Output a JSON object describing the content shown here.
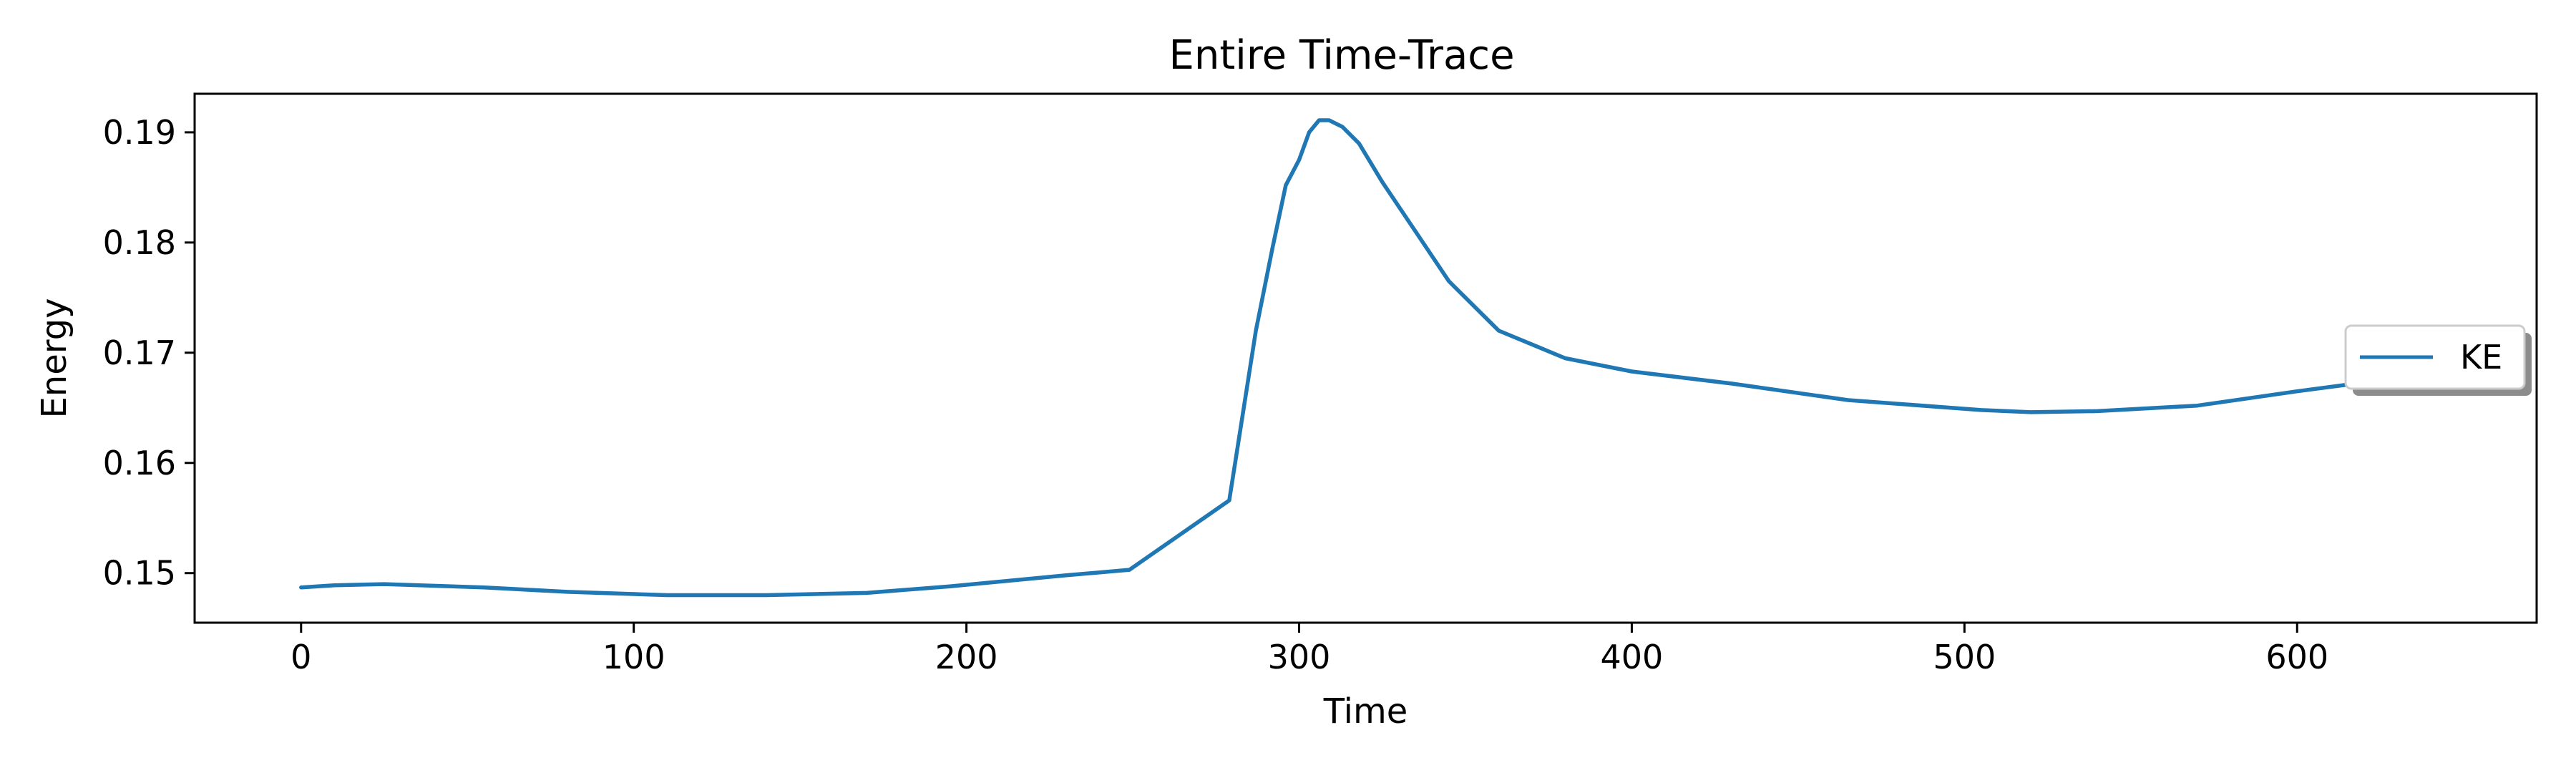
{
  "chart_data": {
    "type": "line",
    "title": "Entire Time-Trace",
    "xlabel": "Time",
    "ylabel": "Energy",
    "xlim": [
      -32,
      672
    ],
    "ylim": [
      0.1455,
      0.1935
    ],
    "xticks": [
      0,
      100,
      200,
      300,
      400,
      500,
      600
    ],
    "xtick_labels": [
      "0",
      "100",
      "200",
      "300",
      "400",
      "500",
      "600"
    ],
    "yticks": [
      0.15,
      0.16,
      0.17,
      0.18,
      0.19
    ],
    "ytick_labels": [
      "0.15",
      "0.16",
      "0.17",
      "0.18",
      "0.19"
    ],
    "grid": false,
    "legend_position": "center-right",
    "series": [
      {
        "name": "KE",
        "color": "#1f77b4",
        "x": [
          0,
          10,
          25,
          55,
          80,
          110,
          140,
          170,
          195,
          230,
          249,
          279,
          287,
          292,
          296,
          300,
          303,
          306,
          309,
          313,
          318,
          325,
          335,
          345,
          360,
          380,
          400,
          430,
          465,
          505,
          520,
          540,
          570,
          600,
          625
        ],
        "y": [
          0.1487,
          0.1489,
          0.149,
          0.1487,
          0.1483,
          0.148,
          0.148,
          0.1482,
          0.1488,
          0.1498,
          0.1503,
          0.1566,
          0.172,
          0.1795,
          0.1852,
          0.1875,
          0.19,
          0.1911,
          0.1911,
          0.1905,
          0.189,
          0.1855,
          0.181,
          0.1765,
          0.172,
          0.1695,
          0.1683,
          0.1672,
          0.1657,
          0.1648,
          0.1646,
          0.1647,
          0.1652,
          0.1665,
          0.1675
        ]
      }
    ]
  }
}
